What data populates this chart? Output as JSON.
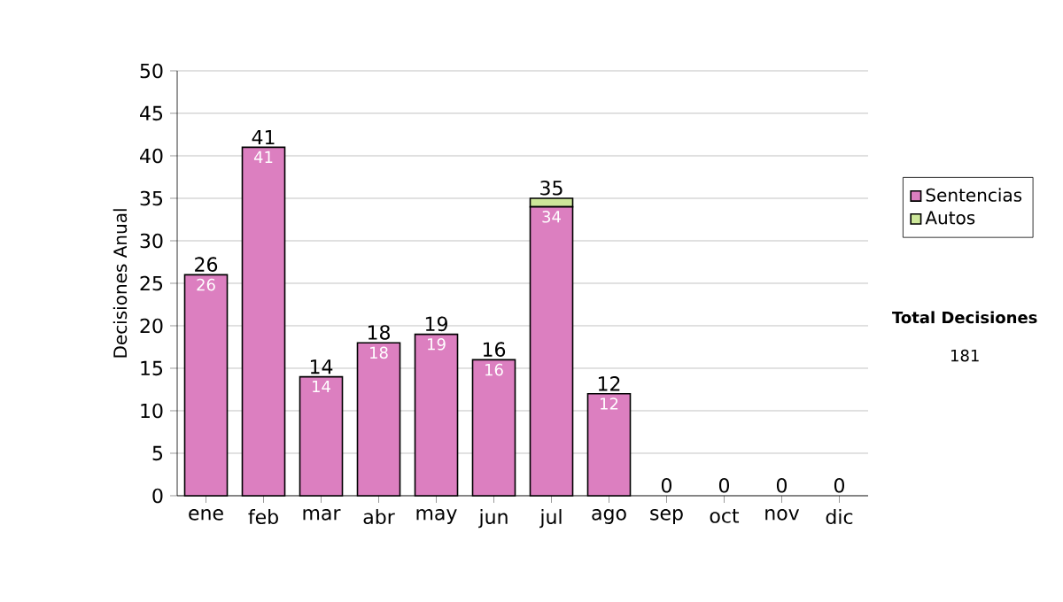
{
  "chart_data": {
    "type": "bar",
    "stacked": true,
    "ylabel": "Decisiones Anual",
    "categories": [
      "ene",
      "feb",
      "mar",
      "abr",
      "may",
      "jun",
      "jul",
      "ago",
      "sep",
      "oct",
      "nov",
      "dic"
    ],
    "series": [
      {
        "name": "Sentencias",
        "color": "#dc7fc0",
        "values": [
          26,
          41,
          14,
          18,
          19,
          16,
          34,
          12,
          0,
          0,
          0,
          0
        ],
        "value_labels": [
          "26",
          "41",
          "14",
          "18",
          "19",
          "16",
          "34",
          "12",
          null,
          null,
          null,
          null
        ]
      },
      {
        "name": "Autos",
        "color": "#cde79a",
        "values": [
          0,
          0,
          0,
          0,
          0,
          0,
          1,
          0,
          0,
          0,
          0,
          0
        ]
      }
    ],
    "totals": [
      "26",
      "41",
      "14",
      "18",
      "19",
      "16",
      "35",
      "12",
      "0",
      "0",
      "0",
      "0"
    ],
    "ylim": [
      0,
      50
    ],
    "yticks": [
      0,
      5,
      10,
      15,
      20,
      25,
      30,
      35,
      40,
      45,
      50
    ],
    "grid": "y",
    "legend": "right",
    "annotations": [
      "Total Decisiones",
      "181"
    ]
  }
}
